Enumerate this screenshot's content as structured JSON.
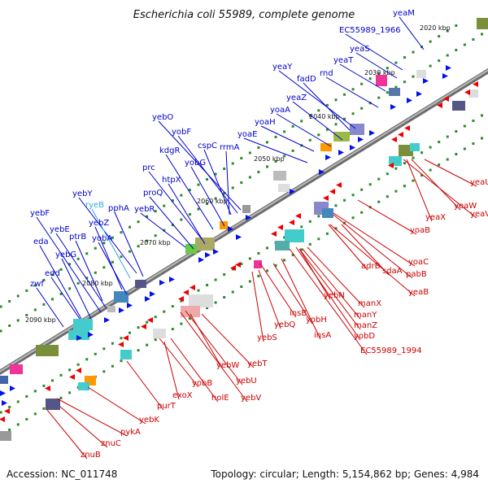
{
  "title": "Escherichia coli 55989, complete genome",
  "footer": {
    "accession": "Accession: NC_011748",
    "summary": "Topology: circular; Length: 5,154,862 bp; Genes: 4,984"
  },
  "kbp_ticks": [
    "2020 kbp",
    "2030 kbp",
    "2040 kbp",
    "2050 kbp",
    "2060 kbp",
    "2070 kbp",
    "2080 kbp",
    "2090 kbp"
  ],
  "colors": {
    "forward_label": "#0000cc",
    "reverse_label": "#cc0000",
    "rna_label": "#33aadd",
    "backbone": "#888888"
  },
  "forward_genes": [
    "yeaM",
    "EC55989_1966",
    "yeaS",
    "yeaT",
    "rnd",
    "yeaY",
    "fadD",
    "yeaZ",
    "yoaA",
    "yoaH",
    "yoaE",
    "yebO",
    "yobF",
    "cspC",
    "rrmA",
    "kdgR",
    "yobG",
    "prc",
    "htpX",
    "proQ",
    "yebR",
    "yebY",
    "ryeB",
    "pphA",
    "yebF",
    "yebE",
    "yebZ",
    "ptrB",
    "yobA",
    "eda",
    "yebG",
    "edd",
    "zwf"
  ],
  "reverse_genes": [
    "yeaU",
    "yeaW",
    "yeaV",
    "yeaX",
    "yoaB",
    "yoaC",
    "pabB",
    "adrB",
    "sdaA",
    "yeaB",
    "yebN",
    "manX",
    "manY",
    "manZ",
    "yobD",
    "EC55989_1994",
    "insB",
    "yobH",
    "insA",
    "yebQ",
    "yebS",
    "yebT",
    "yebW",
    "yebU",
    "yebV",
    "yobB",
    "holE",
    "exoX",
    "purT",
    "yebK",
    "pykA",
    "znuC",
    "znuB"
  ]
}
